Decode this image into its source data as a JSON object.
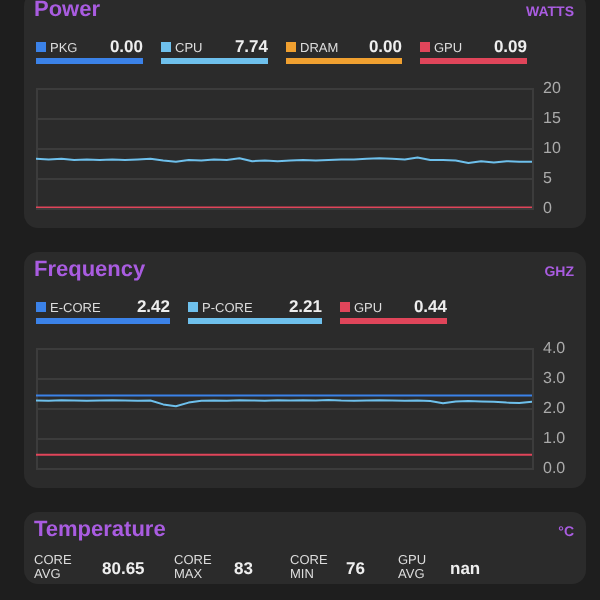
{
  "chart_data": [
    {
      "type": "line",
      "title": "Power",
      "ylabel": "WATTS",
      "categories": [
        null,
        null,
        null,
        null,
        null,
        null,
        null,
        null,
        null,
        null,
        null,
        null,
        null,
        null,
        null,
        null,
        null,
        null,
        null,
        null,
        null,
        null,
        null,
        null,
        null,
        null,
        null,
        null,
        null,
        null,
        null,
        null,
        null,
        null,
        null,
        null,
        null,
        null,
        null,
        null
      ],
      "ylim": [
        0,
        20
      ],
      "yticks": [
        0,
        5,
        10,
        15,
        20
      ],
      "grid": "y",
      "tick_labels": "y",
      "legend": "top",
      "annotations": [
        "0.00",
        "7.74",
        "0.00",
        "0.09"
      ],
      "series": [
        {
          "name": "PKG",
          "color": "#3b82e8",
          "values": [
            null,
            null,
            null,
            null,
            null,
            null,
            null,
            null,
            null,
            null,
            null,
            null,
            null,
            null,
            null,
            null,
            null,
            null,
            null,
            null,
            null,
            null,
            null,
            null,
            null,
            null,
            null,
            null,
            null,
            null,
            null,
            null,
            null,
            null,
            null,
            null,
            null,
            null,
            null,
            null
          ]
        },
        {
          "name": "CPU",
          "color": "#6ec0ec",
          "values": [
            8.2,
            8.1,
            8.2,
            8.0,
            8.1,
            8.0,
            8.1,
            8.0,
            8.1,
            8.2,
            7.9,
            7.7,
            8.0,
            7.9,
            8.1,
            8.0,
            8.3,
            7.8,
            7.9,
            7.8,
            7.9,
            8.0,
            7.9,
            8.0,
            8.1,
            8.1,
            8.2,
            8.3,
            8.2,
            8.1,
            8.4,
            8.0,
            8.0,
            7.9,
            7.5,
            7.8,
            7.6,
            7.8,
            7.7,
            7.7
          ]
        },
        {
          "name": "DRAM",
          "color": "#f0a030",
          "values": [
            null,
            null,
            null,
            null,
            null,
            null,
            null,
            null,
            null,
            null,
            null,
            null,
            null,
            null,
            null,
            null,
            null,
            null,
            null,
            null,
            null,
            null,
            null,
            null,
            null,
            null,
            null,
            null,
            null,
            null,
            null,
            null,
            null,
            null,
            null,
            null,
            null,
            null,
            null,
            null
          ]
        },
        {
          "name": "GPU",
          "color": "#e0455a",
          "values": [
            0.1,
            0.1,
            0.1,
            0.1,
            0.1,
            0.1,
            0.1,
            0.1,
            0.1,
            0.1,
            0.1,
            0.1,
            0.1,
            0.1,
            0.1,
            0.1,
            0.1,
            0.1,
            0.1,
            0.1,
            0.1,
            0.1,
            0.1,
            0.1,
            0.1,
            0.1,
            0.1,
            0.1,
            0.1,
            0.1,
            0.1,
            0.1,
            0.1,
            0.1,
            0.1,
            0.1,
            0.1,
            0.1,
            0.1,
            0.1
          ]
        }
      ]
    },
    {
      "type": "line",
      "title": "Frequency",
      "ylabel": "GHZ",
      "categories": [
        null,
        null,
        null,
        null,
        null,
        null,
        null,
        null,
        null,
        null,
        null,
        null,
        null,
        null,
        null,
        null,
        null,
        null,
        null,
        null,
        null,
        null,
        null,
        null,
        null,
        null,
        null,
        null,
        null,
        null,
        null,
        null,
        null,
        null,
        null,
        null,
        null,
        null,
        null,
        null
      ],
      "ylim": [
        0,
        4
      ],
      "yticks": [
        {
          "value": 0,
          "label": "0.0"
        },
        {
          "value": 1,
          "label": "1.0"
        },
        {
          "value": 2,
          "label": "2.0"
        },
        {
          "value": 3,
          "label": "3.0"
        },
        {
          "value": 4,
          "label": "4.0"
        }
      ],
      "grid": "y",
      "tick_labels": "y",
      "legend": "top",
      "annotations": [
        "2.42",
        "2.21",
        "0.44"
      ],
      "series": [
        {
          "name": "E-CORE",
          "color": "#3b82e8",
          "values": [
            2.42,
            2.42,
            2.42,
            2.42,
            2.42,
            2.42,
            2.42,
            2.42,
            2.42,
            2.42,
            2.42,
            2.42,
            2.42,
            2.42,
            2.42,
            2.42,
            2.42,
            2.42,
            2.42,
            2.42,
            2.42,
            2.42,
            2.42,
            2.42,
            2.42,
            2.42,
            2.42,
            2.42,
            2.42,
            2.42,
            2.42,
            2.42,
            2.42,
            2.42,
            2.42,
            2.42,
            2.42,
            2.42,
            2.42,
            2.42
          ]
        },
        {
          "name": "P-CORE",
          "color": "#6ec0ec",
          "values": [
            2.25,
            2.24,
            2.26,
            2.25,
            2.24,
            2.25,
            2.26,
            2.25,
            2.24,
            2.25,
            2.12,
            2.06,
            2.18,
            2.24,
            2.25,
            2.24,
            2.26,
            2.25,
            2.24,
            2.26,
            2.25,
            2.26,
            2.25,
            2.27,
            2.25,
            2.24,
            2.25,
            2.26,
            2.25,
            2.24,
            2.25,
            2.23,
            2.16,
            2.22,
            2.23,
            2.22,
            2.21,
            2.18,
            2.17,
            2.21
          ]
        },
        {
          "name": "GPU",
          "color": "#e0455a",
          "values": [
            0.44,
            0.44,
            0.44,
            0.44,
            0.44,
            0.44,
            0.44,
            0.44,
            0.44,
            0.44,
            0.44,
            0.44,
            0.44,
            0.44,
            0.44,
            0.44,
            0.44,
            0.44,
            0.44,
            0.44,
            0.44,
            0.44,
            0.44,
            0.44,
            0.44,
            0.44,
            0.44,
            0.44,
            0.44,
            0.44,
            0.44,
            0.44,
            0.44,
            0.44,
            0.44,
            0.44,
            0.44,
            0.44,
            0.44,
            0.44
          ]
        }
      ]
    },
    {
      "type": "other",
      "title": "Temperature",
      "ylabel": "°C",
      "annotations": [
        "CORE AVG",
        "80.65",
        "CORE MAX",
        "83",
        "CORE MIN",
        "76",
        "GPU AVG",
        "nan"
      ]
    }
  ]
}
